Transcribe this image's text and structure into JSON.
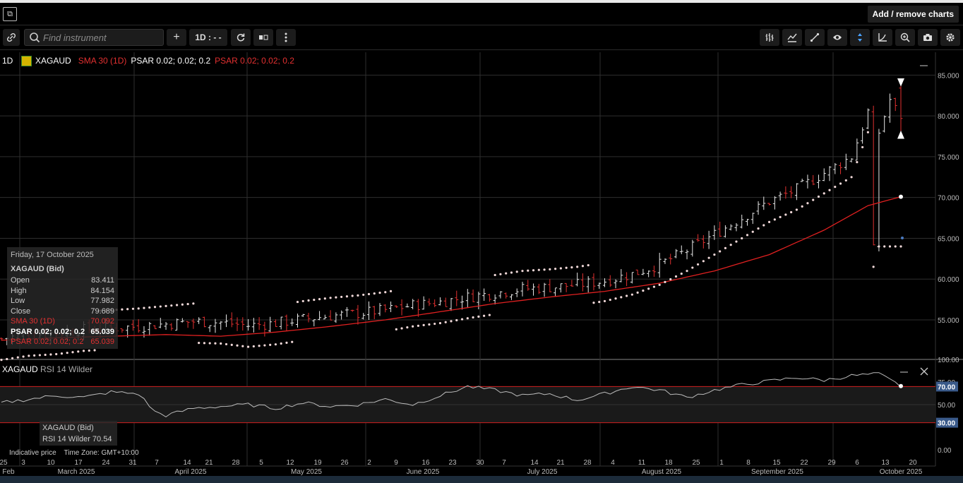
{
  "topbar": {
    "logo_glyph": "⧉",
    "add_remove_label": "Add / remove charts"
  },
  "toolbar": {
    "search_placeholder": "Find instrument",
    "add_label": "+",
    "timeframe_label": "1D : - -",
    "right_icons": [
      "bar-type-icon",
      "indicators-icon",
      "drawing-icon",
      "eye-icon",
      "crosshair-icon",
      "curve-icon",
      "zoom-icon",
      "camera-icon",
      "gear-icon"
    ]
  },
  "legend": {
    "timeframe": "1D",
    "symbol": "XAGAUD",
    "sma": "SMA 30 (1D)",
    "psar_white": "PSAR 0.02; 0.02; 0.2",
    "psar_red": "PSAR 0.02; 0.02; 0.2"
  },
  "info_box": {
    "date": "Friday, 17 October 2025",
    "instrument": "XAGAUD (Bid)",
    "rows": [
      {
        "label": "Open",
        "value": "83.411"
      },
      {
        "label": "High",
        "value": "84.154"
      },
      {
        "label": "Low",
        "value": "77.982"
      },
      {
        "label": "Close",
        "value": "79.689"
      },
      {
        "label": "SMA 30 (1D)",
        "value": "70.092"
      },
      {
        "label": "PSAR 0.02; 0.02; 0.2",
        "value": "65.039"
      },
      {
        "label": "PSAR 0.02; 0.02; 0.2",
        "value": "65.039"
      }
    ]
  },
  "rsi": {
    "title": "XAGAUD",
    "indicator": "RSI 14 Wilder",
    "box_title": "XAGAUD (Bid)",
    "box_value": "RSI 14 Wilder 70.54",
    "tick_labels": [
      "100.00",
      "75.00",
      "50.00",
      "0.00"
    ],
    "marker_70": "70.00",
    "marker_30": "30.00"
  },
  "footer": {
    "indicative": "Indicative price",
    "timezone": "Time Zone: GMT+10:00"
  },
  "chart_data": {
    "type": "bar",
    "symbol": "XAGAUD",
    "timeframe": "1D",
    "y_ticks": [
      "85.000",
      "80.000",
      "75.000",
      "70.000",
      "65.000",
      "60.000",
      "55.000"
    ],
    "ylim": [
      50.5,
      87.8
    ],
    "y_label": "",
    "day_labels": [
      "25",
      "3",
      "10",
      "17",
      "24",
      "31",
      "7",
      "14",
      "21",
      "28",
      "5",
      "12",
      "19",
      "26",
      "2",
      "9",
      "16",
      "23",
      "30",
      "7",
      "14",
      "21",
      "28",
      "4",
      "11",
      "18",
      "25",
      "1",
      "8",
      "15",
      "22",
      "29",
      "6",
      "13",
      "20"
    ],
    "month_labels": [
      "Feb",
      "March 2025",
      "April 2025",
      "May 2025",
      "June 2025",
      "July 2025",
      "August 2025",
      "September 2025",
      "October 2025"
    ],
    "current_price": "79.689",
    "ohlc_points": [
      [
        0,
        52.7
      ],
      [
        5,
        53.2
      ],
      [
        10,
        53.4
      ],
      [
        15,
        53.8
      ],
      [
        20,
        54.0
      ],
      [
        25,
        54.2
      ],
      [
        30,
        54.5
      ],
      [
        35,
        54.8
      ],
      [
        40,
        54.7
      ],
      [
        45,
        54.3
      ],
      [
        50,
        54.6
      ],
      [
        55,
        55.1
      ],
      [
        60,
        55.5
      ],
      [
        65,
        55.8
      ],
      [
        70,
        56.2
      ],
      [
        75,
        56.8
      ],
      [
        80,
        57.2
      ],
      [
        85,
        57.8
      ],
      [
        90,
        58.3
      ],
      [
        95,
        58.8
      ],
      [
        100,
        59.0
      ],
      [
        105,
        59.3
      ],
      [
        110,
        59.8
      ],
      [
        115,
        60.6
      ],
      [
        120,
        61.8
      ],
      [
        125,
        63.5
      ],
      [
        130,
        65.5
      ],
      [
        135,
        67.5
      ],
      [
        140,
        69.5
      ],
      [
        145,
        71.0
      ],
      [
        150,
        73.0
      ],
      [
        155,
        75.0
      ],
      [
        158,
        80.5
      ],
      [
        159,
        64.0
      ],
      [
        160,
        78.0
      ],
      [
        162,
        82.0
      ],
      [
        164,
        79.7
      ]
    ],
    "ohlc_x_dates": "index 0 = 24 Feb 2025, index 164 = 17 Oct 2025",
    "sma_points": [
      [
        0,
        52.5
      ],
      [
        10,
        52.8
      ],
      [
        20,
        53.0
      ],
      [
        30,
        53.2
      ],
      [
        40,
        53.0
      ],
      [
        50,
        53.5
      ],
      [
        60,
        54.2
      ],
      [
        70,
        55.0
      ],
      [
        80,
        56.0
      ],
      [
        90,
        57.0
      ],
      [
        100,
        57.8
      ],
      [
        110,
        58.5
      ],
      [
        120,
        59.5
      ],
      [
        130,
        61.0
      ],
      [
        140,
        63.0
      ],
      [
        150,
        66.0
      ],
      [
        158,
        69.0
      ],
      [
        164,
        70.092
      ]
    ],
    "rsi_points": [
      [
        0,
        52
      ],
      [
        5,
        56
      ],
      [
        10,
        60
      ],
      [
        15,
        58
      ],
      [
        20,
        64
      ],
      [
        25,
        62
      ],
      [
        28,
        42
      ],
      [
        30,
        38
      ],
      [
        35,
        46
      ],
      [
        40,
        48
      ],
      [
        45,
        50
      ],
      [
        50,
        46
      ],
      [
        55,
        52
      ],
      [
        60,
        48
      ],
      [
        65,
        50
      ],
      [
        70,
        56
      ],
      [
        75,
        50
      ],
      [
        80,
        60
      ],
      [
        85,
        70
      ],
      [
        90,
        66
      ],
      [
        95,
        60
      ],
      [
        100,
        62
      ],
      [
        105,
        55
      ],
      [
        110,
        62
      ],
      [
        115,
        70
      ],
      [
        120,
        66
      ],
      [
        125,
        58
      ],
      [
        130,
        66
      ],
      [
        135,
        72
      ],
      [
        140,
        76
      ],
      [
        145,
        80
      ],
      [
        150,
        77
      ],
      [
        155,
        82
      ],
      [
        160,
        84
      ],
      [
        164,
        70.54
      ]
    ]
  }
}
